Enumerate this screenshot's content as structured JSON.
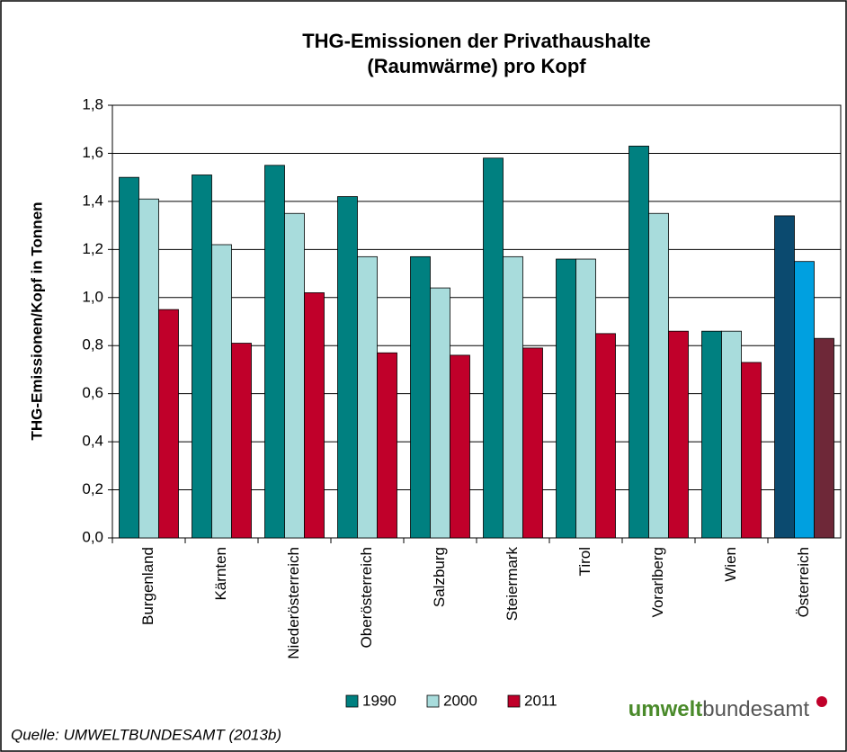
{
  "chart_data": {
    "type": "bar",
    "title": [
      "THG-Emissionen der Privathaushalte",
      "(Raumwärme) pro Kopf"
    ],
    "y_label": "THG-Emissionen/Kopf in Tonnen",
    "categories": [
      "Burgenland",
      "Kärnten",
      "Niederösterreich",
      "Oberösterreich",
      "Salzburg",
      "Steiermark",
      "Tirol",
      "Vorarlberg",
      "Wien",
      "Österreich"
    ],
    "series": [
      {
        "name": "1990",
        "color": "#008080",
        "colors": [
          "#008080",
          "#008080",
          "#008080",
          "#008080",
          "#008080",
          "#008080",
          "#008080",
          "#008080",
          "#008080",
          "#0b4a6f"
        ],
        "values": [
          1.5,
          1.51,
          1.55,
          1.42,
          1.17,
          1.58,
          1.16,
          1.63,
          0.86,
          1.34
        ]
      },
      {
        "name": "2000",
        "color": "#a8dcdc",
        "colors": [
          "#a8dcdc",
          "#a8dcdc",
          "#a8dcdc",
          "#a8dcdc",
          "#a8dcdc",
          "#a8dcdc",
          "#a8dcdc",
          "#a8dcdc",
          "#a8dcdc",
          "#00a0e0"
        ],
        "values": [
          1.41,
          1.22,
          1.35,
          1.17,
          1.04,
          1.17,
          1.16,
          1.35,
          0.86,
          1.15
        ]
      },
      {
        "name": "2011",
        "color": "#c0002a",
        "colors": [
          "#c0002a",
          "#c0002a",
          "#c0002a",
          "#c0002a",
          "#c0002a",
          "#c0002a",
          "#c0002a",
          "#c0002a",
          "#c0002a",
          "#6e2838"
        ],
        "values": [
          0.95,
          0.81,
          1.02,
          0.77,
          0.76,
          0.79,
          0.85,
          0.86,
          0.73,
          0.83
        ]
      }
    ],
    "ylim": [
      0,
      1.8
    ],
    "yticks": [
      {
        "value": 0,
        "label": "0,0"
      },
      {
        "value": 0.2,
        "label": "0,2"
      },
      {
        "value": 0.4,
        "label": "0,4"
      },
      {
        "value": 0.6,
        "label": "0,6"
      },
      {
        "value": 0.8,
        "label": "0,8"
      },
      {
        "value": 1.0,
        "label": "1,0"
      },
      {
        "value": 1.2,
        "label": "1,2"
      },
      {
        "value": 1.4,
        "label": "1,4"
      },
      {
        "value": 1.6,
        "label": "1,6"
      },
      {
        "value": 1.8,
        "label": "1,8"
      }
    ],
    "grid": true,
    "legend": "bottom",
    "source": "Quelle: UMWELTBUNDESAMT (2013b)",
    "logo": [
      "umwelt",
      "bundesamt"
    ]
  }
}
